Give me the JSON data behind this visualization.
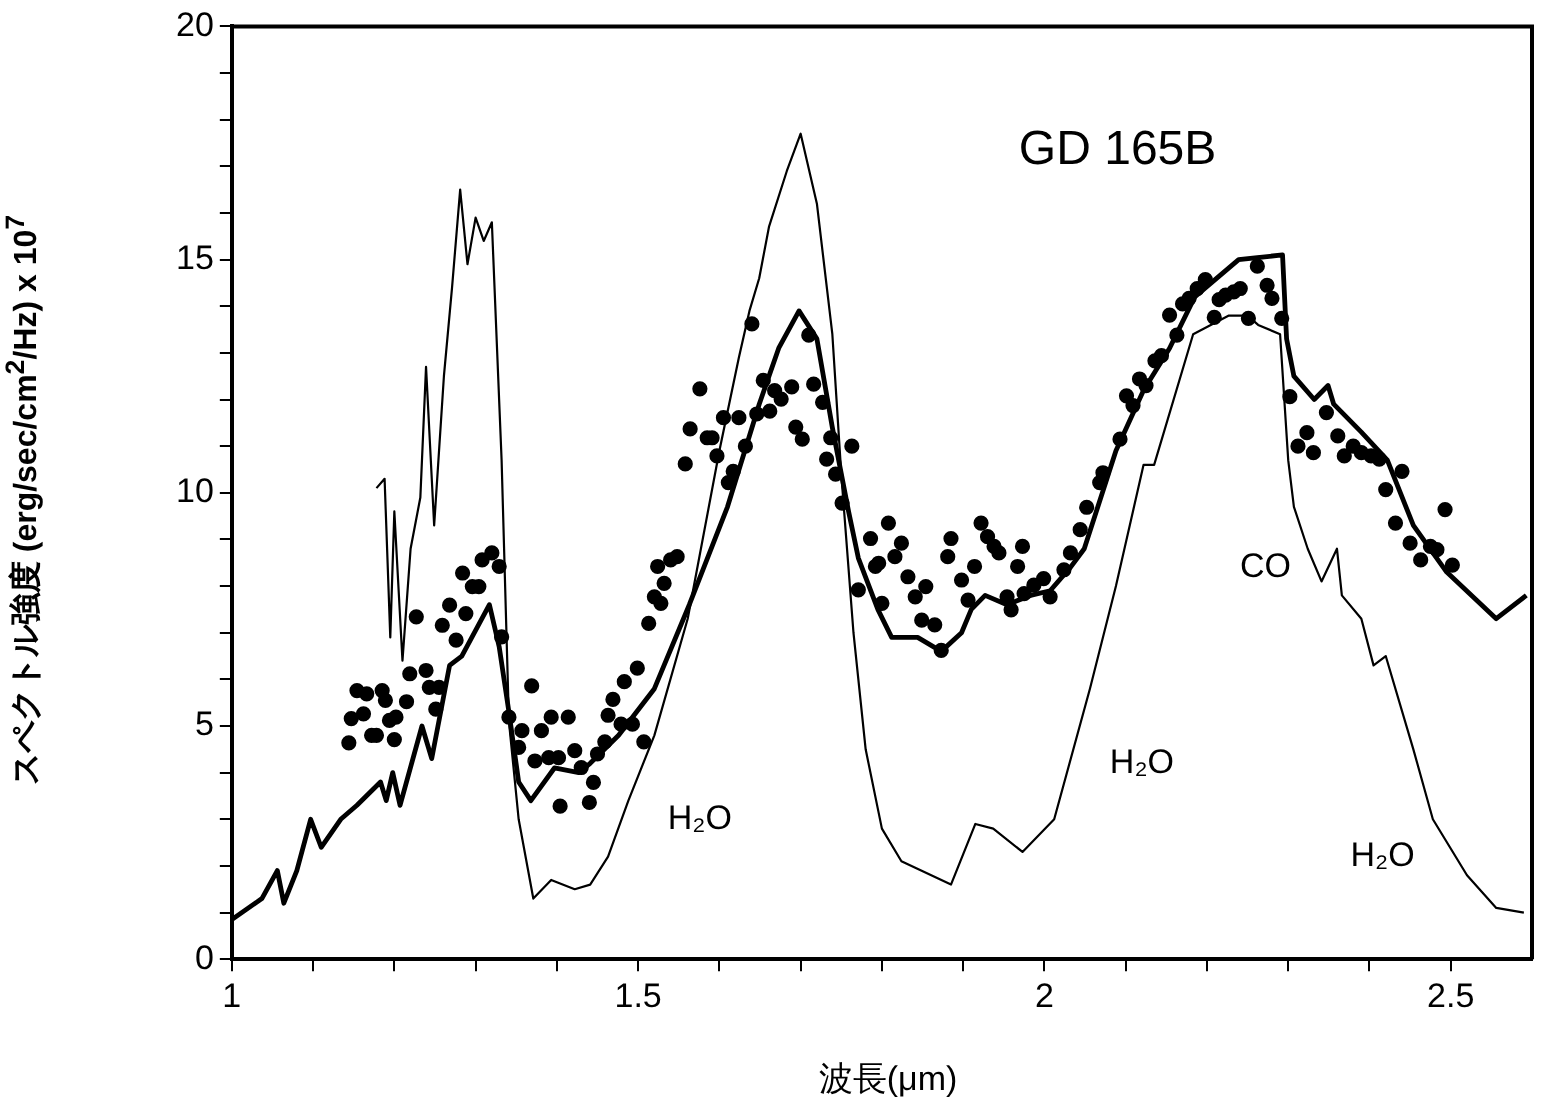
{
  "chart_data": {
    "type": "line",
    "title": "GD 165B",
    "xlabel": "波長(μm)",
    "ylabel": "スペクトル強度 (erg/sec/cm$^{2}$/Hz) x 10$^{7}$",
    "xlim": [
      1,
      2.6
    ],
    "xticks": [
      1,
      {
        "value": 1.1,
        "label": null
      },
      {
        "value": 1.2,
        "label": null
      },
      {
        "value": 1.3,
        "label": null
      },
      {
        "value": 1.4,
        "label": null
      },
      1.5,
      {
        "value": 1.6,
        "label": null
      },
      {
        "value": 1.7,
        "label": null
      },
      {
        "value": 1.8,
        "label": null
      },
      {
        "value": 1.9,
        "label": null
      },
      2,
      {
        "value": 2.1,
        "label": null
      },
      {
        "value": 2.2,
        "label": null
      },
      {
        "value": 2.3,
        "label": null
      },
      {
        "value": 2.4,
        "label": null
      },
      2.5
    ],
    "ylim": [
      0,
      20
    ],
    "yticks": [
      0,
      {
        "value": 1,
        "label": null
      },
      {
        "value": 2,
        "label": null
      },
      {
        "value": 3,
        "label": null
      },
      {
        "value": 4,
        "label": null
      },
      5,
      {
        "value": 6,
        "label": null
      },
      {
        "value": 7,
        "label": null
      },
      {
        "value": 8,
        "label": null
      },
      {
        "value": 9,
        "label": null
      },
      10,
      {
        "value": 11,
        "label": null
      },
      {
        "value": 12,
        "label": null
      },
      {
        "value": 13,
        "label": null
      },
      {
        "value": 14,
        "label": null
      },
      15,
      {
        "value": 16,
        "label": null
      },
      {
        "value": 17,
        "label": null
      },
      {
        "value": 18,
        "label": null
      },
      {
        "value": 19,
        "label": null
      },
      20
    ],
    "series": [
      {
        "color": "#000000",
        "marker": "none",
        "line_style": "solid",
        "x": [
          1.0,
          1.037,
          1.056,
          1.064,
          1.08,
          1.097,
          1.11,
          1.134,
          1.154,
          1.183,
          1.19,
          1.198,
          1.207,
          1.234,
          1.246,
          1.268,
          1.283,
          1.317,
          1.329,
          1.341,
          1.353,
          1.368,
          1.397,
          1.427,
          1.441,
          1.476,
          1.52,
          1.563,
          1.61,
          1.649,
          1.673,
          1.698,
          1.72,
          1.739,
          1.759,
          1.771,
          1.795,
          1.812,
          1.844,
          1.873,
          1.898,
          1.91,
          1.927,
          1.954,
          1.983,
          2.007,
          2.032,
          2.049,
          2.088,
          2.122,
          2.154,
          2.185,
          2.239,
          2.293,
          2.298,
          2.307,
          2.332,
          2.349,
          2.356,
          2.39,
          2.422,
          2.454,
          2.495,
          2.556,
          2.593
        ],
        "values": [
          0.85,
          1.3,
          1.9,
          1.2,
          1.9,
          3.0,
          2.4,
          3.0,
          3.3,
          3.8,
          3.4,
          4.0,
          3.3,
          5.0,
          4.3,
          6.3,
          6.5,
          7.6,
          6.7,
          5.3,
          3.8,
          3.4,
          4.1,
          4.0,
          4.2,
          4.8,
          5.8,
          7.6,
          9.7,
          11.9,
          13.1,
          13.9,
          13.3,
          11.4,
          9.6,
          8.6,
          7.5,
          6.9,
          6.9,
          6.6,
          7.0,
          7.5,
          7.8,
          7.6,
          7.8,
          7.9,
          8.4,
          8.8,
          10.9,
          12.2,
          13.1,
          14.2,
          15.0,
          15.1,
          13.3,
          12.5,
          12.0,
          12.3,
          11.9,
          11.3,
          10.7,
          9.3,
          8.3,
          7.3,
          7.8
        ]
      },
      {
        "color": "#000000",
        "marker": "none",
        "line_style": "solid",
        "x": [
          1.178,
          1.188,
          1.195,
          1.2,
          1.21,
          1.22,
          1.232,
          1.239,
          1.249,
          1.261,
          1.271,
          1.281,
          1.29,
          1.3,
          1.31,
          1.32,
          1.332,
          1.341,
          1.353,
          1.371,
          1.393,
          1.422,
          1.441,
          1.463,
          1.488,
          1.52,
          1.561,
          1.6,
          1.624,
          1.637,
          1.649,
          1.661,
          1.683,
          1.7,
          1.72,
          1.739,
          1.75,
          1.765,
          1.78,
          1.8,
          1.824,
          1.885,
          1.915,
          1.937,
          1.973,
          2.012,
          2.056,
          2.088,
          2.122,
          2.135,
          2.183,
          2.227,
          2.25,
          2.263,
          2.29,
          2.3,
          2.307,
          2.324,
          2.341,
          2.36,
          2.366,
          2.39,
          2.405,
          2.42,
          2.454,
          2.478,
          2.52,
          2.556,
          2.59
        ],
        "values": [
          10.1,
          10.3,
          6.9,
          9.6,
          6.4,
          8.8,
          9.9,
          12.7,
          9.3,
          12.5,
          14.4,
          16.5,
          14.9,
          15.9,
          15.4,
          15.8,
          10.7,
          5.1,
          3.0,
          1.3,
          1.7,
          1.5,
          1.6,
          2.2,
          3.4,
          4.8,
          7.3,
          10.9,
          12.9,
          13.9,
          14.6,
          15.7,
          16.9,
          17.7,
          16.2,
          13.4,
          10.4,
          7.0,
          4.5,
          2.8,
          2.1,
          1.6,
          2.9,
          2.8,
          2.3,
          3.0,
          5.8,
          8.0,
          10.6,
          10.6,
          13.4,
          13.8,
          13.8,
          13.6,
          13.4,
          10.7,
          9.7,
          8.8,
          8.1,
          8.8,
          7.8,
          7.3,
          6.3,
          6.5,
          4.5,
          3.0,
          1.8,
          1.1,
          1.0
        ]
      },
      {
        "type": "scatter",
        "color": "#000000",
        "marker": "circle",
        "x": [
          1.144,
          1.147,
          1.154,
          1.162,
          1.166,
          1.172,
          1.178,
          1.185,
          1.189,
          1.194,
          1.2,
          1.202,
          1.215,
          1.219,
          1.227,
          1.239,
          1.243,
          1.251,
          1.255,
          1.259,
          1.268,
          1.276,
          1.284,
          1.288,
          1.296,
          1.304,
          1.308,
          1.32,
          1.329,
          1.332,
          1.341,
          1.353,
          1.357,
          1.369,
          1.373,
          1.381,
          1.39,
          1.393,
          1.402,
          1.404,
          1.414,
          1.422,
          1.43,
          1.44,
          1.445,
          1.45,
          1.459,
          1.463,
          1.469,
          1.479,
          1.483,
          1.493,
          1.499,
          1.507,
          1.513,
          1.52,
          1.524,
          1.528,
          1.532,
          1.54,
          1.548,
          1.558,
          1.564,
          1.576,
          1.585,
          1.591,
          1.597,
          1.605,
          1.611,
          1.617,
          1.624,
          1.632,
          1.64,
          1.646,
          1.654,
          1.662,
          1.668,
          1.676,
          1.689,
          1.694,
          1.702,
          1.71,
          1.716,
          1.727,
          1.732,
          1.737,
          1.743,
          1.751,
          1.763,
          1.771,
          1.786,
          1.792,
          1.796,
          1.8,
          1.808,
          1.816,
          1.824,
          1.832,
          1.841,
          1.849,
          1.854,
          1.865,
          1.873,
          1.881,
          1.885,
          1.898,
          1.906,
          1.914,
          1.922,
          1.93,
          1.938,
          1.944,
          1.954,
          1.959,
          1.967,
          1.973,
          1.975,
          1.987,
          1.999,
          2.007,
          2.024,
          2.032,
          2.044,
          2.052,
          2.068,
          2.072,
          2.093,
          2.101,
          2.109,
          2.117,
          2.125,
          2.136,
          2.144,
          2.154,
          2.163,
          2.17,
          2.178,
          2.188,
          2.198,
          2.209,
          2.215,
          2.223,
          2.233,
          2.241,
          2.251,
          2.262,
          2.274,
          2.28,
          2.292,
          2.302,
          2.312,
          2.323,
          2.331,
          2.347,
          2.361,
          2.369,
          2.38,
          2.39,
          2.402,
          2.412,
          2.42,
          2.432,
          2.44,
          2.45,
          2.463,
          2.475,
          2.483,
          2.493,
          2.502
        ],
        "values": [
          4.64,
          5.16,
          5.76,
          5.26,
          5.69,
          4.8,
          4.8,
          5.76,
          5.55,
          5.12,
          4.71,
          5.19,
          5.52,
          6.12,
          7.34,
          6.19,
          5.83,
          5.36,
          5.83,
          7.16,
          7.59,
          6.84,
          8.28,
          7.41,
          7.99,
          7.99,
          8.56,
          8.71,
          8.42,
          6.91,
          5.19,
          4.54,
          4.9,
          5.86,
          4.25,
          4.9,
          4.32,
          5.19,
          4.32,
          3.28,
          5.19,
          4.47,
          4.11,
          3.36,
          3.79,
          4.4,
          4.66,
          5.23,
          5.57,
          5.04,
          5.95,
          5.04,
          6.24,
          4.66,
          7.2,
          7.77,
          8.42,
          7.63,
          8.06,
          8.56,
          8.63,
          10.62,
          11.37,
          12.23,
          11.18,
          11.18,
          10.79,
          11.61,
          10.22,
          10.46,
          11.61,
          11.0,
          13.62,
          11.69,
          12.41,
          11.75,
          12.19,
          12.01,
          12.27,
          11.41,
          11.15,
          13.38,
          12.33,
          11.94,
          10.72,
          11.18,
          10.4,
          9.78,
          11.0,
          7.92,
          9.02,
          8.42,
          8.49,
          7.63,
          9.35,
          8.63,
          8.92,
          8.2,
          7.77,
          7.27,
          7.99,
          7.17,
          6.62,
          8.63,
          9.02,
          8.13,
          7.7,
          8.42,
          9.35,
          9.06,
          8.85,
          8.71,
          7.77,
          7.49,
          8.42,
          8.85,
          7.84,
          8.02,
          8.16,
          7.77,
          8.35,
          8.71,
          9.21,
          9.69,
          10.22,
          10.43,
          11.15,
          12.08,
          11.87,
          12.44,
          12.3,
          12.83,
          12.94,
          13.81,
          13.38,
          14.05,
          14.17,
          14.38,
          14.57,
          13.76,
          14.14,
          14.24,
          14.31,
          14.38,
          13.74,
          14.86,
          14.45,
          14.17,
          13.74,
          12.06,
          11.0,
          11.29,
          10.86,
          11.72,
          11.22,
          10.79,
          11.0,
          10.86,
          10.79,
          10.72,
          10.07,
          9.35,
          10.46,
          8.92,
          8.56,
          8.85,
          8.78,
          9.64,
          8.45
        ]
      }
    ],
    "annotations": [
      "H₂O",
      "H₂O",
      "CO",
      "H₂O"
    ]
  }
}
